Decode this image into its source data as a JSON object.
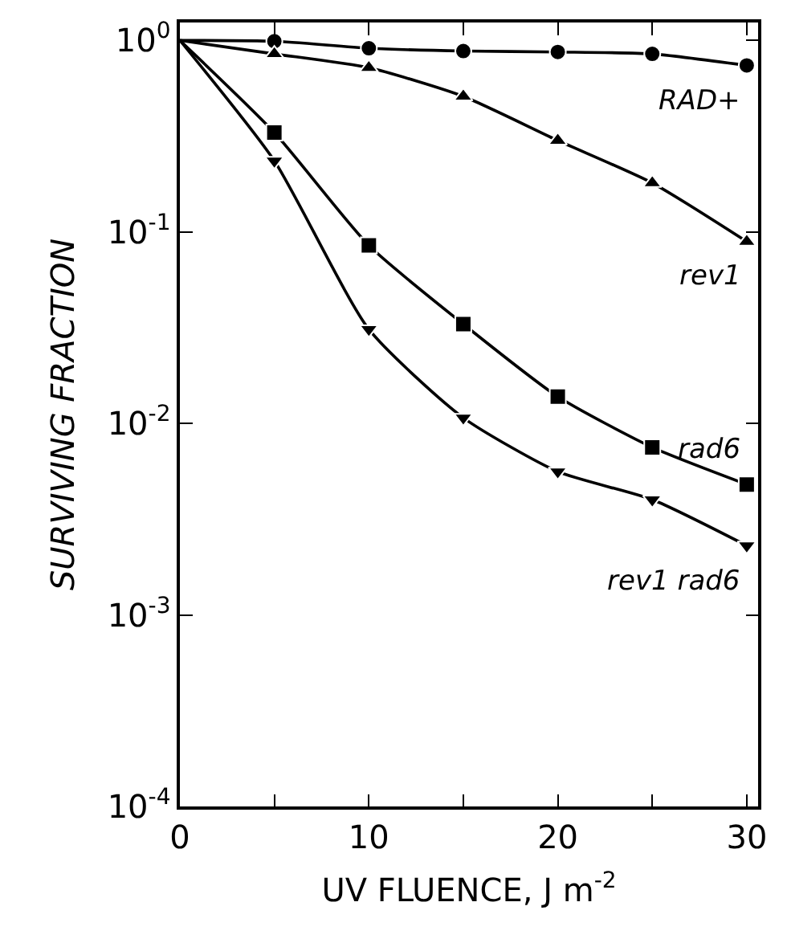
{
  "chart_data": {
    "type": "line",
    "xlabel": "UV FLUENCE, J m$^{-2}$",
    "ylabel": "SURVIVING FRACTION",
    "log": "y",
    "x": [
      0,
      5,
      10,
      15,
      20,
      25,
      30
    ],
    "xlim": [
      0,
      30.6
    ],
    "xticks": [
      0,
      {
        "value": 5,
        "label": null
      },
      10,
      {
        "value": 15,
        "label": null
      },
      20,
      {
        "value": 25,
        "label": null
      },
      30
    ],
    "ylim": [
      0.0001,
      1.24
    ],
    "yticks": [
      {
        "value": 1,
        "label": "10$^{0}$"
      },
      {
        "value": 0.1,
        "label": "10$^{-1}$"
      },
      {
        "value": 0.01,
        "label": "10$^{-2}$"
      },
      {
        "value": 0.001,
        "label": "10$^{-3}$"
      },
      {
        "value": 0.0001,
        "label": "10$^{-4}$"
      }
    ],
    "legend": "right",
    "series": [
      {
        "name": "RAD+",
        "color": "#000000",
        "marker": "circle",
        "values": [
          1,
          0.99,
          0.91,
          0.88,
          0.87,
          0.85,
          0.74
        ]
      },
      {
        "name": "rev1",
        "color": "#000000",
        "marker": "triangle",
        "values": [
          1,
          0.85,
          0.72,
          0.51,
          0.3,
          0.18,
          0.089
        ]
      },
      {
        "name": "rad6",
        "color": "#000000",
        "marker": "square",
        "values": [
          1,
          0.33,
          0.085,
          0.033,
          0.0138,
          0.0075,
          0.0048
        ]
      },
      {
        "name": "rev1 rad6",
        "color": "#000000",
        "marker": "triangle-down",
        "values": [
          1,
          0.235,
          0.031,
          0.0107,
          0.0056,
          0.004,
          0.0023
        ]
      }
    ]
  }
}
